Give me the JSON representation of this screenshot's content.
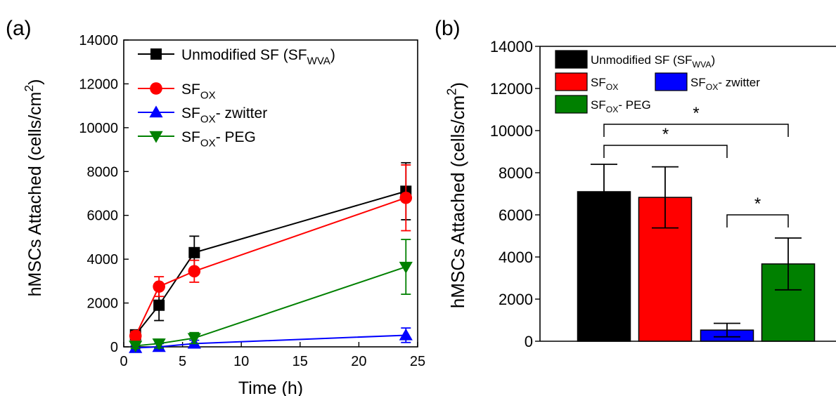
{
  "panel_labels": [
    "(a)",
    "(b)"
  ],
  "chart_data": [
    {
      "type": "line",
      "panel": "(a)",
      "xlabel": "Time (h)",
      "ylabel_main": "hMSCs Attached (cells/cm",
      "ylabel_sup": "2",
      "ylabel_tail": ")",
      "xlim": [
        0,
        25
      ],
      "ylim": [
        0,
        14000
      ],
      "x_ticks": [
        0,
        5,
        10,
        15,
        20,
        25
      ],
      "y_ticks": [
        0,
        2000,
        4000,
        6000,
        8000,
        10000,
        12000,
        14000
      ],
      "legend_placement": "top-left",
      "series": [
        {
          "name": "Unmodified SF (SF_WVA)",
          "base": "Unmodified SF (SF",
          "sub": "WVA",
          "suffix": ")",
          "color": "#000000",
          "marker": "square",
          "x": [
            1,
            3,
            6,
            24
          ],
          "y": [
            550,
            1900,
            4300,
            7100
          ],
          "err": [
            200,
            700,
            750,
            1300
          ]
        },
        {
          "name": "SF_OX",
          "base": "SF",
          "sub": "OX",
          "suffix": "",
          "color": "#ff0000",
          "marker": "circle",
          "x": [
            1,
            3,
            6,
            24
          ],
          "y": [
            500,
            2750,
            3450,
            6800
          ],
          "err": [
            200,
            450,
            500,
            1500
          ]
        },
        {
          "name": "SF_OX- zwitter",
          "base": "SF",
          "sub": "OX",
          "suffix": "- zwitter",
          "color": "#0000ff",
          "marker": "triangle-up",
          "x": [
            1,
            3,
            6,
            24
          ],
          "y": [
            -50,
            0,
            150,
            530
          ],
          "err": [
            100,
            150,
            150,
            330
          ]
        },
        {
          "name": "SF_OX- PEG",
          "base": "SF",
          "sub": "OX",
          "suffix": "- PEG",
          "color": "#008000",
          "marker": "triangle-down",
          "x": [
            1,
            3,
            6,
            24
          ],
          "y": [
            50,
            150,
            400,
            3650
          ],
          "err": [
            120,
            200,
            250,
            1250
          ]
        }
      ]
    },
    {
      "type": "bar",
      "panel": "(b)",
      "ylabel_main": "hMSCs Attached (cells/cm",
      "ylabel_sup": "2",
      "ylabel_tail": ")",
      "ylim": [
        0,
        14000
      ],
      "y_ticks": [
        0,
        2000,
        4000,
        6000,
        8000,
        10000,
        12000,
        14000
      ],
      "legend_placement": "top-left",
      "bars": [
        {
          "name": "Unmodified SF (SF_WVA)",
          "base": "Unmodified SF (SF",
          "sub": "WVA",
          "suffix": ")",
          "color": "#000000",
          "value": 7100,
          "err": 1300
        },
        {
          "name": "SF_OX",
          "base": "SF",
          "sub": "OX",
          "suffix": "",
          "color": "#ff0000",
          "value": 6830,
          "err": 1450
        },
        {
          "name": "SF_OX- zwitter",
          "base": "SF",
          "sub": "OX",
          "suffix": "- zwitter",
          "color": "#0000ff",
          "value": 530,
          "err": 320
        },
        {
          "name": "SF_OX- PEG",
          "base": "SF",
          "sub": "OX",
          "suffix": "- PEG",
          "color": "#008000",
          "value": 3670,
          "err": 1230
        }
      ],
      "significance": [
        {
          "from": 0,
          "to": 3,
          "label": "*"
        },
        {
          "from": 0,
          "to": 2,
          "label": "*"
        },
        {
          "from": 2,
          "to": 3,
          "label": "*"
        }
      ]
    }
  ]
}
